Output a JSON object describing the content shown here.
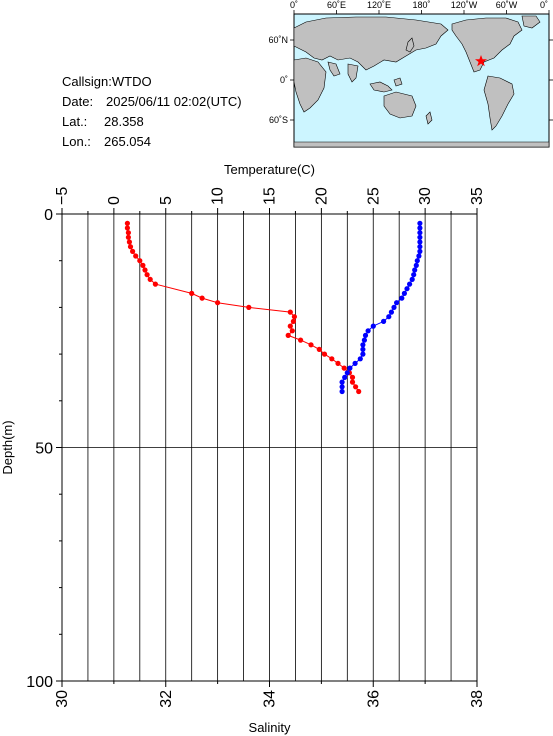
{
  "info": {
    "callsign_label": "Callsign:",
    "callsign": "WTDO",
    "date_label": "Date:",
    "date": "2025/06/11 02:02(UTC)",
    "lat_label": "Lat.:",
    "lat": "28.358",
    "lon_label": "Lon.:",
    "lon": "265.054"
  },
  "map": {
    "lon_labels": [
      "0˚",
      "60˚E",
      "120˚E",
      "180˚",
      "120˚W",
      "60˚W",
      "0˚"
    ],
    "lat_labels": [
      "60˚N",
      "0˚",
      "60˚S"
    ],
    "station_marker": {
      "lon": 265.054,
      "lat": 28.358,
      "color": "#ff0000"
    },
    "ocean_color": "#ccf5ff",
    "land_color": "#c0c0c0"
  },
  "chart_data": {
    "type": "line",
    "title": "",
    "y": {
      "label": "Depth(m)",
      "range": [
        0,
        100
      ],
      "ticks": [
        "0",
        "50",
        "100"
      ],
      "inverted": true
    },
    "x_top": {
      "label": "Temperature(C)",
      "range": [
        -5,
        35
      ],
      "ticks": [
        "−5",
        "0",
        "5",
        "10",
        "15",
        "20",
        "25",
        "30",
        "35"
      ]
    },
    "x_bottom": {
      "label": "Salinity",
      "range": [
        30,
        38
      ],
      "ticks": [
        "30",
        "32",
        "34",
        "36",
        "38"
      ]
    },
    "grid": true,
    "series": [
      {
        "quantity": "temperature",
        "axis": "top",
        "color": "#ff0000",
        "points": [
          [
            1.3,
            2
          ],
          [
            1.3,
            3
          ],
          [
            1.4,
            4
          ],
          [
            1.4,
            5
          ],
          [
            1.5,
            6
          ],
          [
            1.6,
            7
          ],
          [
            1.8,
            8
          ],
          [
            2.1,
            9
          ],
          [
            2.5,
            10
          ],
          [
            2.8,
            11
          ],
          [
            3.0,
            12
          ],
          [
            3.2,
            13
          ],
          [
            3.5,
            14
          ],
          [
            4.0,
            15
          ],
          [
            7.5,
            17
          ],
          [
            8.5,
            18
          ],
          [
            10.0,
            19
          ],
          [
            13.0,
            20
          ],
          [
            17.0,
            21
          ],
          [
            17.4,
            22
          ],
          [
            17.3,
            23
          ],
          [
            17.0,
            24
          ],
          [
            17.2,
            25
          ],
          [
            16.8,
            26
          ],
          [
            18.0,
            27
          ],
          [
            19.0,
            28
          ],
          [
            19.8,
            29
          ],
          [
            20.3,
            30
          ],
          [
            21.0,
            31
          ],
          [
            21.6,
            32
          ],
          [
            22.2,
            33
          ],
          [
            22.7,
            34
          ],
          [
            23.0,
            35
          ],
          [
            23.0,
            36
          ],
          [
            23.3,
            37
          ],
          [
            23.6,
            38
          ]
        ]
      },
      {
        "quantity": "salinity",
        "axis": "bottom",
        "color": "#0000ff",
        "points": [
          [
            36.9,
            2
          ],
          [
            36.9,
            3
          ],
          [
            36.9,
            4
          ],
          [
            36.9,
            5
          ],
          [
            36.9,
            6
          ],
          [
            36.9,
            7
          ],
          [
            36.9,
            8
          ],
          [
            36.88,
            9
          ],
          [
            36.85,
            10
          ],
          [
            36.83,
            11
          ],
          [
            36.8,
            12
          ],
          [
            36.78,
            13
          ],
          [
            36.75,
            14
          ],
          [
            36.7,
            15
          ],
          [
            36.65,
            16
          ],
          [
            36.6,
            17
          ],
          [
            36.55,
            18
          ],
          [
            36.45,
            19
          ],
          [
            36.4,
            20
          ],
          [
            36.35,
            21
          ],
          [
            36.3,
            22
          ],
          [
            36.2,
            23
          ],
          [
            36.0,
            24
          ],
          [
            35.9,
            25
          ],
          [
            35.85,
            26
          ],
          [
            35.83,
            27
          ],
          [
            35.8,
            28
          ],
          [
            35.8,
            29
          ],
          [
            35.8,
            30
          ],
          [
            35.75,
            31
          ],
          [
            35.65,
            32
          ],
          [
            35.55,
            33
          ],
          [
            35.5,
            34
          ],
          [
            35.45,
            35
          ],
          [
            35.4,
            36
          ],
          [
            35.4,
            37
          ],
          [
            35.4,
            38
          ]
        ]
      }
    ]
  }
}
